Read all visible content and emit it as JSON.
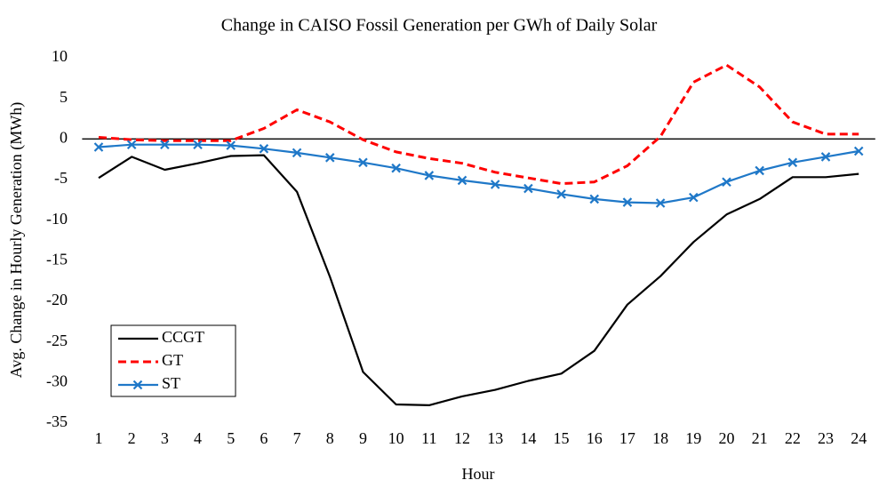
{
  "chart_data": {
    "type": "line",
    "title": "Change in CAISO Fossil Generation per GWh of Daily Solar",
    "x_label": "Hour",
    "y_label": "Avg. Change in Hourly Generation (MWh)",
    "categories": [
      "1",
      "2",
      "3",
      "4",
      "5",
      "6",
      "7",
      "8",
      "9",
      "10",
      "11",
      "12",
      "13",
      "14",
      "15",
      "16",
      "17",
      "18",
      "19",
      "20",
      "21",
      "22",
      "23",
      "24"
    ],
    "series": [
      {
        "name": "CCGT",
        "color": "#000000",
        "dash": "solid",
        "marker": "none",
        "values": [
          -4.8,
          -2.2,
          -3.8,
          -3.0,
          -2.1,
          -2.0,
          -6.5,
          -17.0,
          -28.7,
          -32.7,
          -32.8,
          -31.7,
          -30.9,
          -29.8,
          -28.9,
          -26.1,
          -20.4,
          -16.9,
          -12.7,
          -9.3,
          -7.4,
          -4.7,
          -4.7,
          -4.3
        ]
      },
      {
        "name": "GT",
        "color": "#ff0000",
        "dash": "dashed",
        "marker": "none",
        "values": [
          0.2,
          -0.1,
          -0.2,
          -0.2,
          -0.2,
          1.3,
          3.6,
          2.1,
          -0.1,
          -1.6,
          -2.4,
          -3.0,
          -4.1,
          -4.8,
          -5.5,
          -5.3,
          -3.3,
          0.3,
          7.0,
          9.1,
          6.4,
          2.1,
          0.6,
          0.6
        ]
      },
      {
        "name": "ST",
        "color": "#1f78c8",
        "dash": "solid",
        "marker": "x",
        "values": [
          -1.0,
          -0.7,
          -0.7,
          -0.7,
          -0.8,
          -1.2,
          -1.7,
          -2.3,
          -2.9,
          -3.6,
          -4.5,
          -5.1,
          -5.6,
          -6.1,
          -6.8,
          -7.4,
          -7.8,
          -7.9,
          -7.2,
          -5.3,
          -3.9,
          -2.9,
          -2.2,
          -1.5
        ]
      }
    ],
    "ylim": [
      -35,
      10
    ],
    "yticks": [
      -35,
      -30,
      -25,
      -20,
      -15,
      -10,
      -5,
      0,
      5,
      10
    ],
    "grid": false,
    "legend": "lower left"
  }
}
